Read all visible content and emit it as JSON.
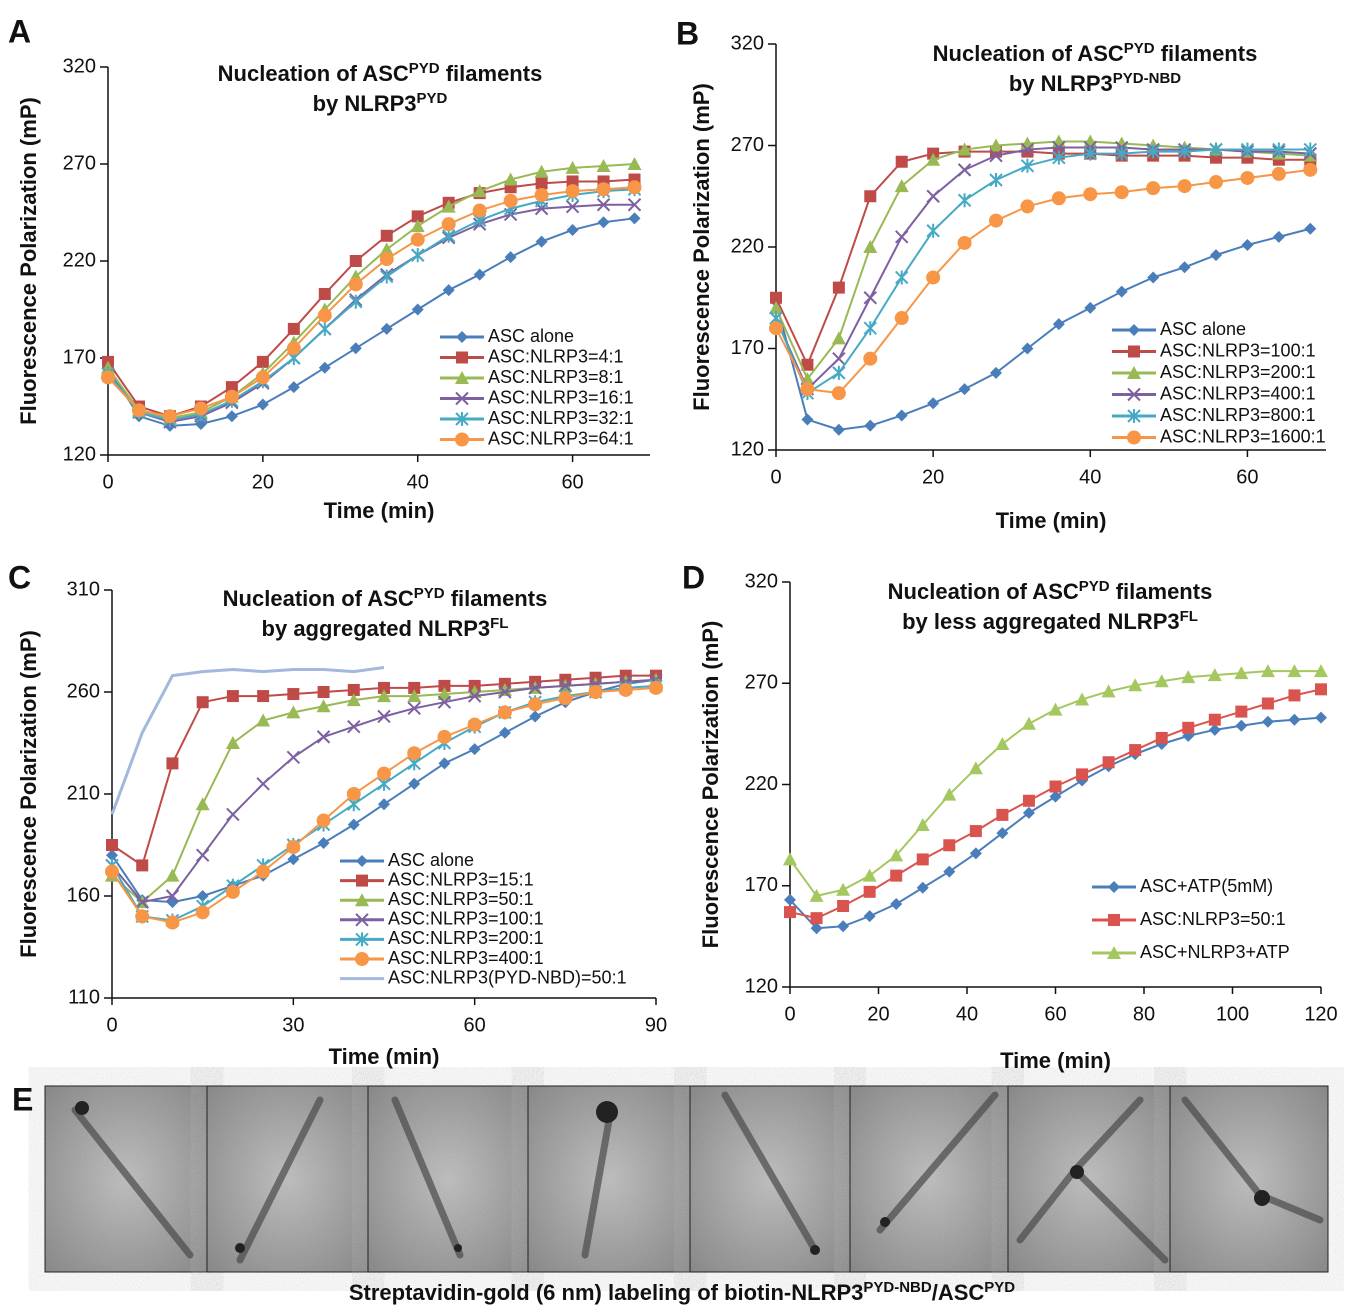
{
  "chart_data": [
    {
      "type": "line",
      "panel": "A",
      "title": [
        [
          {
            "text": "Nucleation of ASC"
          },
          {
            "sup": "PYD"
          },
          {
            "text": " filaments"
          }
        ],
        [
          {
            "text": "by NLRP3"
          },
          {
            "sup": "PYD"
          }
        ]
      ],
      "x_label": "Time (min)",
      "y_label": "Fluorescence Polarization (mP)",
      "xlim": [
        0,
        70
      ],
      "xticks": [
        0,
        20,
        40,
        60
      ],
      "ylim": [
        120,
        320
      ],
      "yticks": [
        120,
        170,
        220,
        270,
        320
      ],
      "legend": "lower right",
      "x": [
        0,
        4,
        8,
        12,
        16,
        20,
        24,
        28,
        32,
        36,
        40,
        44,
        48,
        52,
        56,
        60,
        64,
        68
      ],
      "series": [
        {
          "name": "ASC alone",
          "color": "#4a7ebb",
          "marker": "diamond",
          "values": [
            165,
            140,
            135,
            136,
            140,
            146,
            155,
            165,
            175,
            185,
            195,
            205,
            213,
            222,
            230,
            236,
            240,
            242
          ]
        },
        {
          "name": "ASC:NLRP3=4:1",
          "color": "#be4b48",
          "marker": "square",
          "values": [
            168,
            145,
            140,
            145,
            155,
            168,
            185,
            203,
            220,
            233,
            243,
            250,
            255,
            258,
            260,
            261,
            261,
            262
          ]
        },
        {
          "name": "ASC:NLRP3=8:1",
          "color": "#98b954",
          "marker": "triangle",
          "values": [
            165,
            143,
            139,
            142,
            150,
            162,
            178,
            195,
            212,
            226,
            238,
            248,
            256,
            262,
            266,
            268,
            269,
            270
          ]
        },
        {
          "name": "ASC:NLRP3=16:1",
          "color": "#7d60a0",
          "marker": "x",
          "values": [
            162,
            142,
            137,
            140,
            147,
            157,
            170,
            185,
            200,
            213,
            223,
            232,
            239,
            244,
            247,
            248,
            249,
            249
          ]
        },
        {
          "name": "ASC:NLRP3=32:1",
          "color": "#46aac5",
          "marker": "star",
          "values": [
            162,
            142,
            138,
            141,
            148,
            158,
            170,
            185,
            199,
            212,
            223,
            233,
            241,
            247,
            251,
            254,
            256,
            257
          ]
        },
        {
          "name": "ASC:NLRP3=64:1",
          "color": "#f79646",
          "marker": "circle",
          "values": [
            160,
            143,
            140,
            144,
            150,
            160,
            175,
            192,
            208,
            221,
            231,
            239,
            246,
            251,
            254,
            256,
            257,
            258
          ]
        }
      ]
    },
    {
      "type": "line",
      "panel": "B",
      "title": [
        [
          {
            "text": "Nucleation of ASC"
          },
          {
            "sup": "PYD"
          },
          {
            "text": " filaments"
          }
        ],
        [
          {
            "text": "by NLRP3"
          },
          {
            "sup": "PYD-NBD"
          }
        ]
      ],
      "x_label": "Time (min)",
      "y_label": "Fluorescence Polarization (mP)",
      "xlim": [
        0,
        70
      ],
      "xticks": [
        0,
        20,
        40,
        60
      ],
      "ylim": [
        120,
        320
      ],
      "yticks": [
        120,
        170,
        220,
        270,
        320
      ],
      "legend": "lower right",
      "x": [
        0,
        4,
        8,
        12,
        16,
        20,
        24,
        28,
        32,
        36,
        40,
        44,
        48,
        52,
        56,
        60,
        64,
        68
      ],
      "series": [
        {
          "name": "ASC alone",
          "color": "#4a7ebb",
          "marker": "diamond",
          "values": [
            193,
            135,
            130,
            132,
            137,
            143,
            150,
            158,
            170,
            182,
            190,
            198,
            205,
            210,
            216,
            221,
            225,
            229
          ]
        },
        {
          "name": "ASC:NLRP3=100:1",
          "color": "#be4b48",
          "marker": "square",
          "values": [
            195,
            162,
            200,
            245,
            262,
            266,
            267,
            267,
            267,
            266,
            266,
            265,
            265,
            265,
            264,
            264,
            263,
            263
          ]
        },
        {
          "name": "ASC:NLRP3=200:1",
          "color": "#98b954",
          "marker": "triangle",
          "values": [
            190,
            155,
            175,
            220,
            250,
            263,
            268,
            270,
            271,
            272,
            272,
            271,
            270,
            269,
            268,
            267,
            266,
            265
          ]
        },
        {
          "name": "ASC:NLRP3=400:1",
          "color": "#7d60a0",
          "marker": "x",
          "values": [
            185,
            150,
            165,
            195,
            225,
            245,
            258,
            265,
            268,
            269,
            269,
            269,
            268,
            268,
            268,
            267,
            267,
            266
          ]
        },
        {
          "name": "ASC:NLRP3=800:1",
          "color": "#46aac5",
          "marker": "star",
          "values": [
            185,
            148,
            158,
            180,
            205,
            228,
            243,
            253,
            260,
            264,
            266,
            266,
            267,
            267,
            268,
            268,
            268,
            268
          ]
        },
        {
          "name": "ASC:NLRP3=1600:1",
          "color": "#f79646",
          "marker": "circle",
          "values": [
            180,
            150,
            148,
            165,
            185,
            205,
            222,
            233,
            240,
            244,
            246,
            247,
            249,
            250,
            252,
            254,
            256,
            258
          ]
        }
      ]
    },
    {
      "type": "line",
      "panel": "C",
      "title": [
        [
          {
            "text": "Nucleation of ASC"
          },
          {
            "sup": "PYD"
          },
          {
            "text": " filaments"
          }
        ],
        [
          {
            "text": "by aggregated NLRP3"
          },
          {
            "sup": "FL"
          }
        ]
      ],
      "x_label": "Time (min)",
      "y_label": "Fluorescence Polarization (mP)",
      "xlim": [
        0,
        90
      ],
      "xticks": [
        0,
        30,
        60,
        90
      ],
      "ylim": [
        110,
        310
      ],
      "yticks": [
        110,
        160,
        210,
        260,
        310
      ],
      "legend": "lower right",
      "x": [
        0,
        5,
        10,
        15,
        20,
        25,
        30,
        35,
        40,
        45,
        50,
        55,
        60,
        65,
        70,
        75,
        80,
        85,
        90
      ],
      "series": [
        {
          "name": "ASC alone",
          "color": "#4a7ebb",
          "marker": "diamond",
          "values": [
            180,
            158,
            157,
            160,
            165,
            170,
            178,
            186,
            195,
            205,
            215,
            225,
            232,
            240,
            248,
            255,
            260,
            264,
            266
          ]
        },
        {
          "name": "ASC:NLRP3=15:1",
          "color": "#be4b48",
          "marker": "square",
          "values": [
            185,
            175,
            225,
            255,
            258,
            258,
            259,
            260,
            261,
            262,
            262,
            263,
            263,
            264,
            265,
            266,
            267,
            268,
            268
          ]
        },
        {
          "name": "ASC:NLRP3=50:1",
          "color": "#98b954",
          "marker": "triangle",
          "values": [
            170,
            157,
            170,
            205,
            235,
            246,
            250,
            253,
            256,
            258,
            258,
            259,
            260,
            261,
            262,
            263,
            264,
            265,
            266
          ]
        },
        {
          "name": "ASC:NLRP3=100:1",
          "color": "#7d60a0",
          "marker": "x",
          "values": [
            175,
            157,
            160,
            180,
            200,
            215,
            228,
            238,
            243,
            248,
            252,
            255,
            258,
            260,
            262,
            263,
            264,
            265,
            266
          ]
        },
        {
          "name": "ASC:NLRP3=200:1",
          "color": "#46aac5",
          "marker": "star",
          "values": [
            175,
            150,
            148,
            155,
            165,
            175,
            185,
            195,
            205,
            215,
            225,
            235,
            243,
            250,
            255,
            258,
            260,
            262,
            263
          ]
        },
        {
          "name": "ASC:NLRP3=400:1",
          "color": "#f79646",
          "marker": "circle",
          "values": [
            172,
            150,
            147,
            152,
            162,
            172,
            184,
            197,
            210,
            220,
            230,
            238,
            244,
            250,
            254,
            257,
            260,
            261,
            262
          ]
        },
        {
          "name": "ASC:NLRP3(PYD-NBD)=50:1",
          "color": "#a2b8dc",
          "marker": "none",
          "values": [
            200,
            240,
            268,
            270,
            271,
            270,
            271,
            271,
            270,
            272,
            null,
            null,
            null,
            null,
            null,
            null,
            null,
            null,
            null
          ]
        }
      ]
    },
    {
      "type": "line",
      "panel": "D",
      "title": [
        [
          {
            "text": "Nucleation of ASC"
          },
          {
            "sup": "PYD"
          },
          {
            "text": " filaments"
          }
        ],
        [
          {
            "text": "by less aggregated NLRP3"
          },
          {
            "sup": "FL"
          }
        ]
      ],
      "x_label": "Time (min)",
      "y_label": "Fluorescence Polarization (mP)",
      "xlim": [
        0,
        120
      ],
      "xticks": [
        0,
        20,
        40,
        60,
        80,
        100,
        120
      ],
      "ylim": [
        120,
        320
      ],
      "yticks": [
        120,
        170,
        220,
        270,
        320
      ],
      "legend": "lower right",
      "x": [
        0,
        6,
        12,
        18,
        24,
        30,
        36,
        42,
        48,
        54,
        60,
        66,
        72,
        78,
        84,
        90,
        96,
        102,
        108,
        114,
        120
      ],
      "series": [
        {
          "name": "ASC+ATP(5mM)",
          "color": "#4a7ebb",
          "marker": "diamond",
          "values": [
            163,
            149,
            150,
            155,
            161,
            169,
            177,
            186,
            196,
            206,
            214,
            222,
            229,
            235,
            240,
            244,
            247,
            249,
            251,
            252,
            253
          ]
        },
        {
          "name": "ASC:NLRP3=50:1",
          "color": "#d9534f",
          "marker": "square",
          "values": [
            157,
            154,
            160,
            167,
            175,
            183,
            190,
            197,
            205,
            212,
            219,
            225,
            231,
            237,
            243,
            248,
            252,
            256,
            260,
            264,
            267
          ]
        },
        {
          "name": "ASC+NLRP3+ATP",
          "color": "#a4c75f",
          "marker": "triangle",
          "values": [
            183,
            165,
            168,
            175,
            185,
            200,
            215,
            228,
            240,
            250,
            257,
            262,
            266,
            269,
            271,
            273,
            274,
            275,
            276,
            276,
            276
          ]
        }
      ]
    }
  ],
  "panel_e": {
    "panel": "E",
    "caption": [
      {
        "text": "Streptavidin-gold (6 nm) labeling of biotin-NLRP3"
      },
      {
        "sup": "PYD-NBD"
      },
      {
        "text": "/ASC"
      },
      {
        "sup": "PYD"
      }
    ]
  }
}
